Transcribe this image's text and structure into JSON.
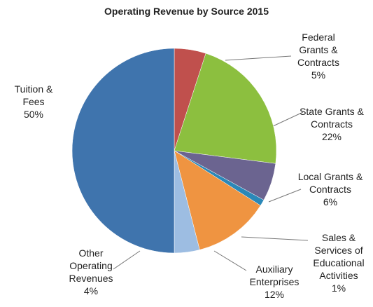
{
  "chart_data": {
    "type": "pie",
    "title": "Operating Revenue by Source 2015",
    "categories": [
      "Federal Grants & Contracts",
      "State Grants & Contracts",
      "Local Grants & Contracts",
      "Sales & Services of Educational Activities",
      "Auxiliary Enterprises",
      "Other Operating Revenues",
      "Tuition & Fees"
    ],
    "values": [
      5,
      22,
      6,
      1,
      12,
      4,
      50
    ],
    "value_labels": [
      "5%",
      "22%",
      "6%",
      "1%",
      "12%",
      "4%",
      "50%"
    ],
    "colors": [
      "#c0504d",
      "#8cbf3f",
      "#6b6490",
      "#2b88b8",
      "#ef9441",
      "#9dbde2",
      "#3f74ad"
    ]
  }
}
